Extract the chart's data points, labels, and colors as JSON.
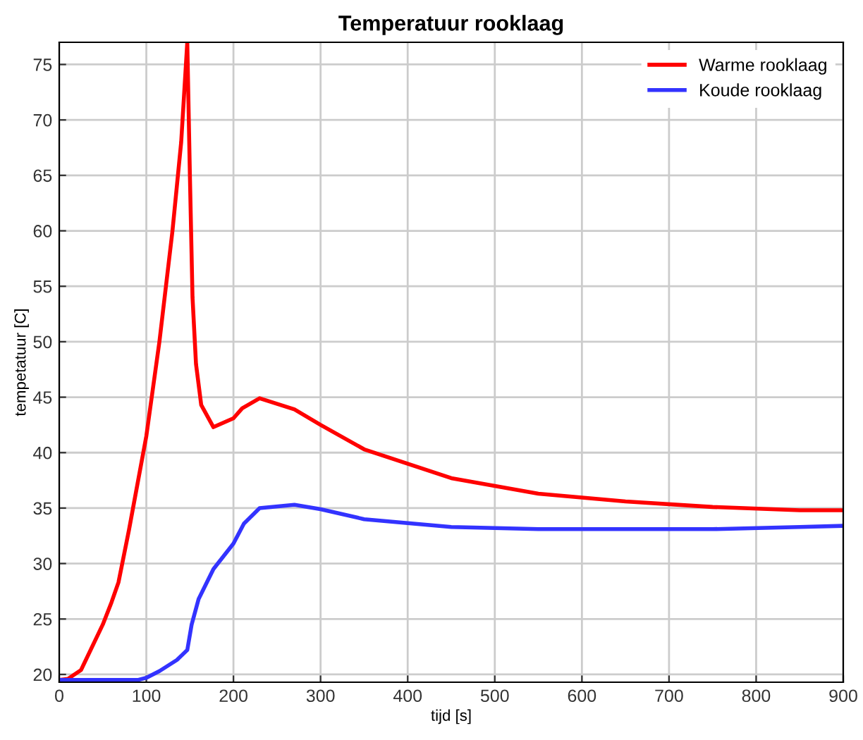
{
  "chart_data": {
    "type": "line",
    "title": "Temperatuur rooklaag",
    "xlabel": "tijd [s]",
    "ylabel": "tempetatuur [C]",
    "xlim": [
      0,
      900
    ],
    "xticks": [
      0,
      100,
      200,
      300,
      400,
      500,
      600,
      700,
      800,
      900
    ],
    "ylim": [
      19.3,
      77
    ],
    "yticks": [
      20,
      25,
      30,
      35,
      40,
      45,
      50,
      55,
      60,
      65,
      70,
      75
    ],
    "grid": true,
    "legend": "top right",
    "series": [
      {
        "name": "Warme rooklaag",
        "color": "#ff0000",
        "x": [
          0,
          10,
          25,
          50,
          60,
          68,
          80,
          100,
          115,
          130,
          140,
          147,
          150,
          153,
          157,
          163,
          177,
          200,
          210,
          230,
          270,
          300,
          350,
          450,
          550,
          650,
          750,
          850,
          900
        ],
        "values": [
          19.5,
          19.6,
          20.4,
          24.5,
          26.5,
          28.3,
          33,
          41.5,
          50,
          60,
          68,
          77,
          65,
          54,
          48,
          44.3,
          42.3,
          43.1,
          44,
          44.9,
          43.9,
          42.5,
          40.3,
          37.7,
          36.3,
          35.6,
          35.1,
          34.8,
          34.8
        ]
      },
      {
        "name": "Koude rooklaag",
        "color": "#3333ff",
        "x": [
          0,
          90,
          100,
          115,
          135,
          147,
          152,
          160,
          177,
          200,
          212,
          230,
          270,
          300,
          350,
          450,
          550,
          750,
          850,
          900
        ],
        "values": [
          19.5,
          19.5,
          19.7,
          20.3,
          21.3,
          22.2,
          24.5,
          26.8,
          29.5,
          31.8,
          33.6,
          35,
          35.3,
          34.9,
          34,
          33.3,
          33.1,
          33.1,
          33.3,
          33.4
        ]
      }
    ]
  }
}
